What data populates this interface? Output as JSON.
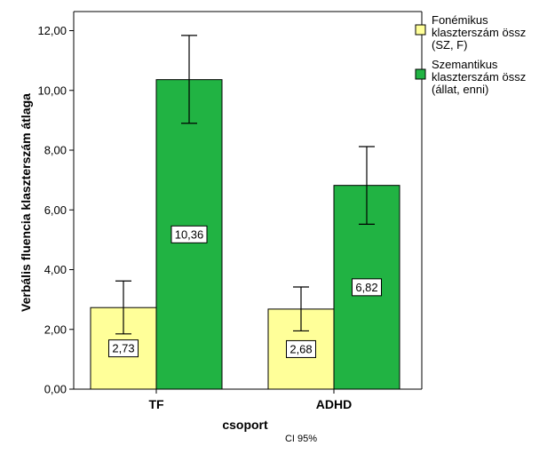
{
  "chart_data": {
    "type": "bar",
    "ylabel": "Verbális fluencia klaszterszám átlaga",
    "xlabel": "csoport",
    "note": "CI 95%",
    "categories": [
      "TF",
      "ADHD"
    ],
    "ylim": [
      0,
      12
    ],
    "yticks": [
      "0,00",
      "2,00",
      "4,00",
      "6,00",
      "8,00",
      "10,00",
      "12,00"
    ],
    "series": [
      {
        "name_lines": [
          "Fonémikus",
          "klaszterszám össz",
          "(SZ, F)"
        ],
        "color": "#ffff99",
        "values": [
          2.73,
          2.68
        ],
        "labels": [
          "2,73",
          "2,68"
        ],
        "ci_low": [
          1.85,
          1.95
        ],
        "ci_high": [
          3.62,
          3.42
        ]
      },
      {
        "name_lines": [
          "Szemantikus",
          "klaszterszám össz",
          "(állat, enni)"
        ],
        "color": "#21b343",
        "values": [
          10.36,
          6.82
        ],
        "labels": [
          "10,36",
          "6,82"
        ],
        "ci_low": [
          8.9,
          5.52
        ],
        "ci_high": [
          11.84,
          8.12
        ]
      }
    ],
    "legend_position": "right",
    "grid": false
  }
}
